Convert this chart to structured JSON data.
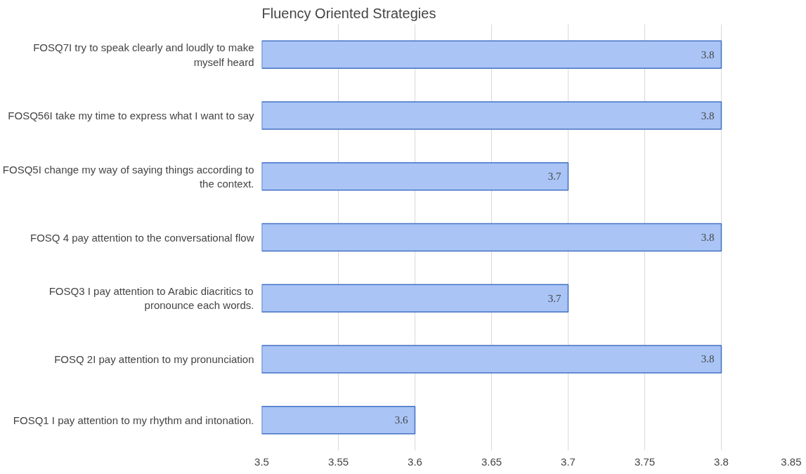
{
  "chart_data": {
    "type": "bar",
    "orientation": "horizontal",
    "title": "Fluency Oriented Strategies",
    "categories": [
      "FOSQ7I try to speak clearly and loudly to make myself heard",
      "FOSQ56I take my time to express what I want to say",
      "FOSQ5I change my way of saying things according to the context.",
      "FOSQ 4 pay attention to the conversational flow",
      "FOSQ3 I pay attention to Arabic diacritics to pronounce each words.",
      "FOSQ 2I pay attention to my pronunciation",
      "FOSQ1 I pay attention to my rhythm and intonation."
    ],
    "values": [
      3.8,
      3.8,
      3.7,
      3.8,
      3.7,
      3.8,
      3.6
    ],
    "color": "#a9c4f5",
    "xlim": [
      3.5,
      3.85
    ],
    "xticks": [
      3.5,
      3.55,
      3.6,
      3.65,
      3.7,
      3.75,
      3.8,
      3.85
    ],
    "grid": "x",
    "data_labels": true
  }
}
